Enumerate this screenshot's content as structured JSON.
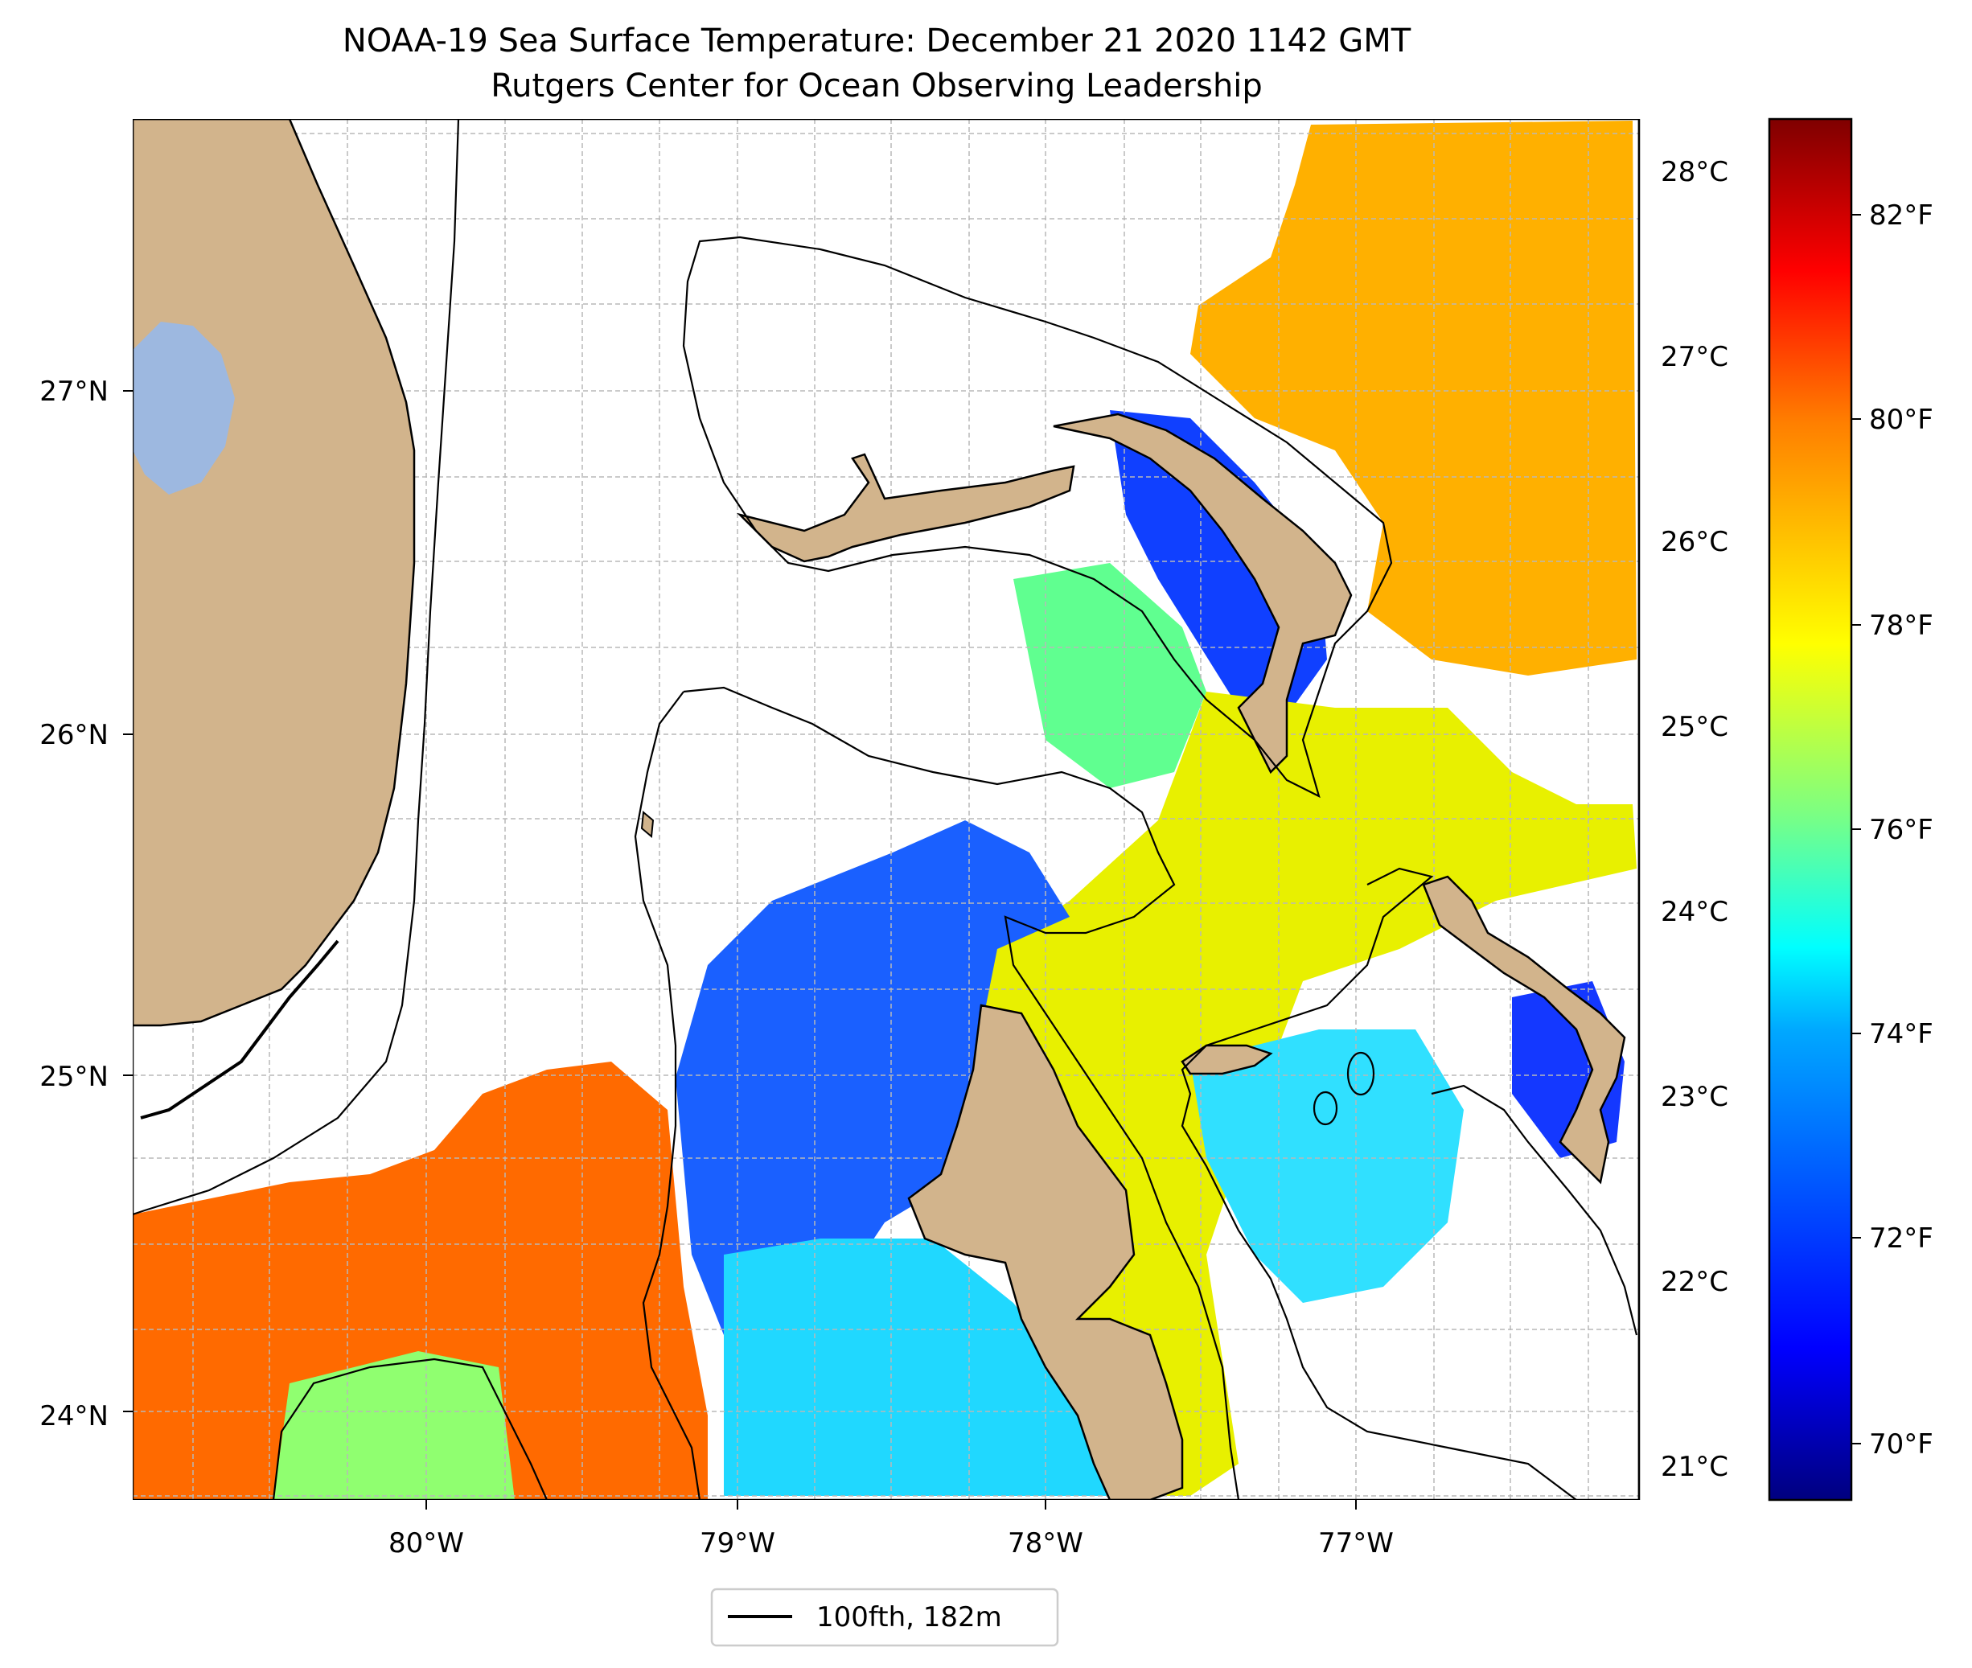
{
  "title": {
    "line1": "NOAA-19 Sea Surface Temperature: December 21 2020 1142 GMT",
    "line2": "Rutgers Center for Ocean Observing Leadership"
  },
  "map": {
    "lon_ticks": [
      "80°W",
      "79°W",
      "78°W",
      "77°W"
    ],
    "lat_ticks": [
      "27°N",
      "26°N",
      "25°N",
      "24°N"
    ],
    "grid": true
  },
  "colorbar": {
    "celsius_ticks": [
      "28°C",
      "27°C",
      "26°C",
      "25°C",
      "24°C",
      "23°C",
      "22°C",
      "21°C"
    ],
    "fahrenheit_ticks": [
      "82°F",
      "80°F",
      "78°F",
      "76°F",
      "74°F",
      "72°F",
      "70°F"
    ],
    "colormap": [
      "#00007f",
      "#0000ff",
      "#007fff",
      "#00ffff",
      "#7fff7f",
      "#ffff00",
      "#ff7f00",
      "#ff0000",
      "#7f0000"
    ]
  },
  "legend": {
    "label": "100fth, 182m"
  },
  "colors": {
    "land": "#d2b48c",
    "lake": "#9db8e0",
    "contour": "#000000"
  }
}
